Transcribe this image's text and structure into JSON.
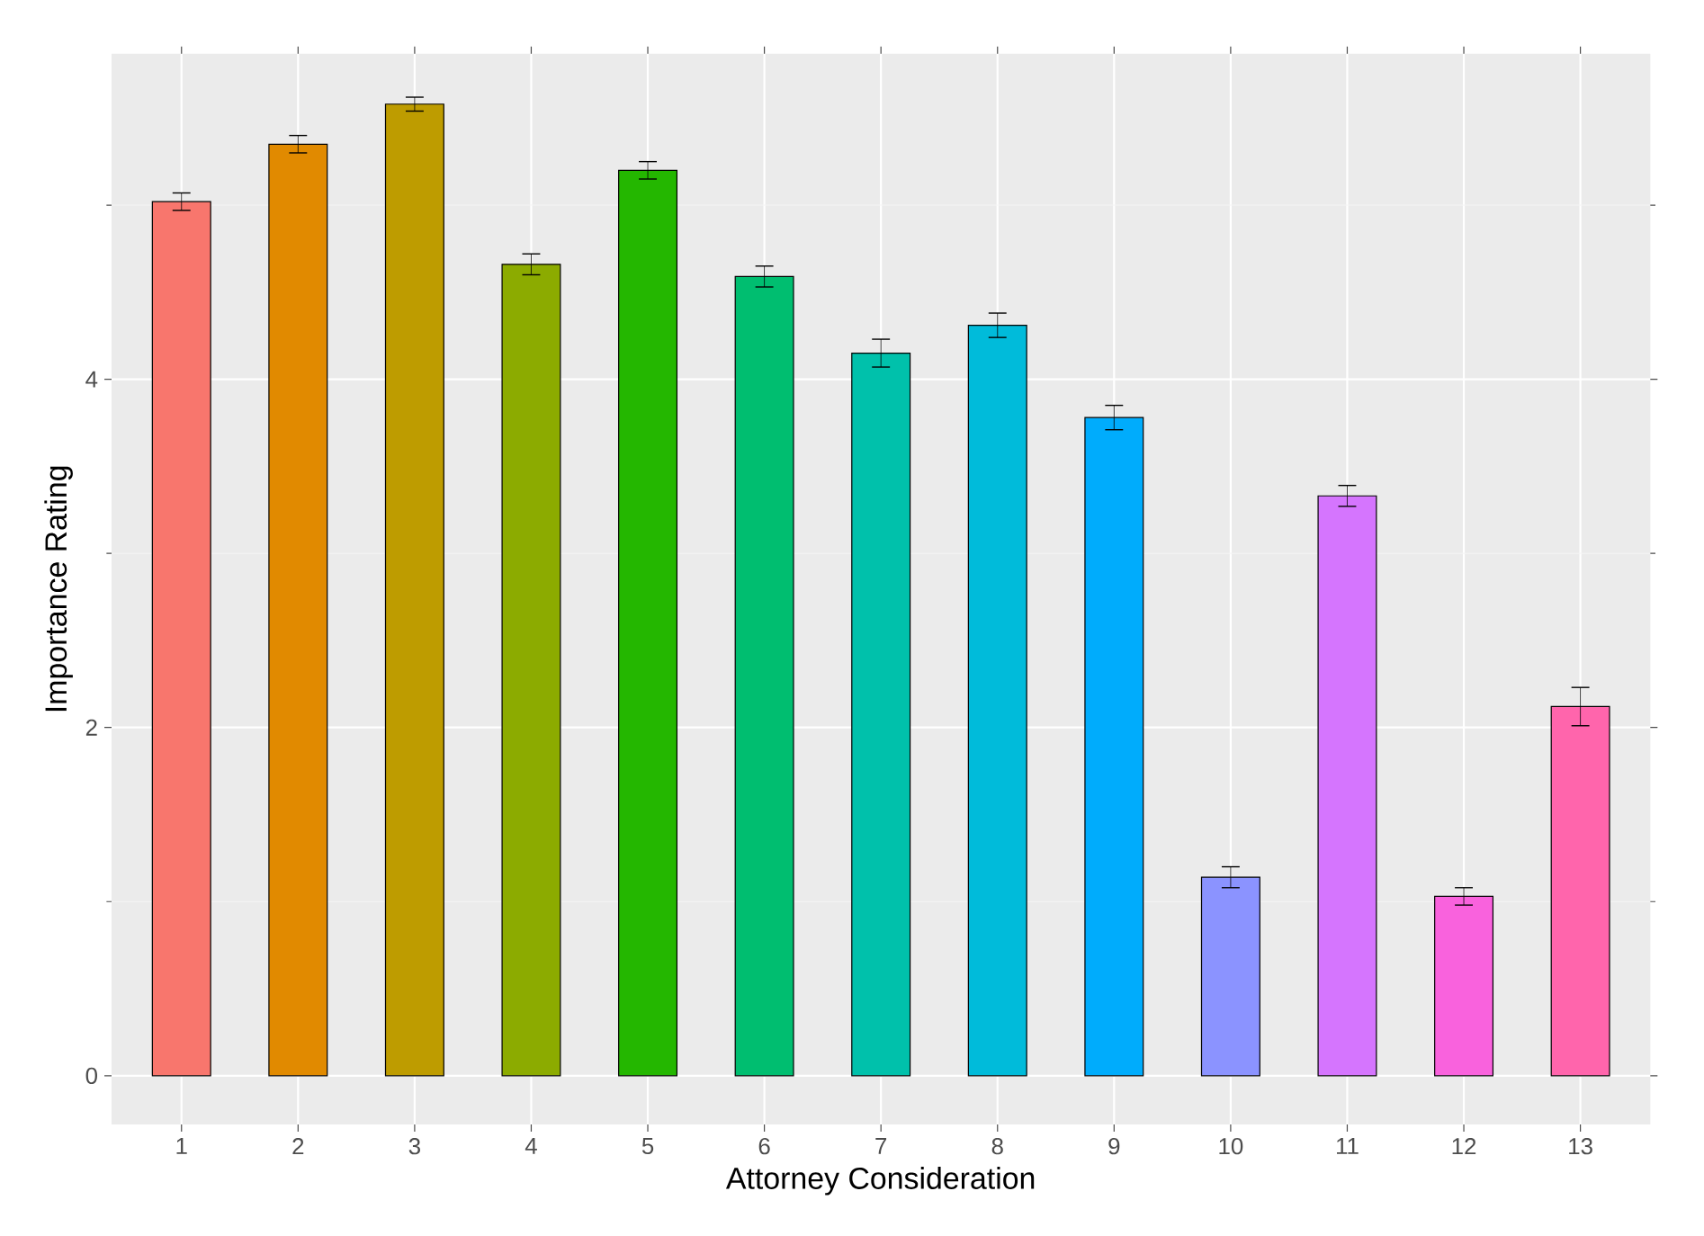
{
  "chart_data": {
    "type": "bar",
    "xlabel": "Attorney Consideration",
    "ylabel": "Importance Rating",
    "categories": [
      "1",
      "2",
      "3",
      "4",
      "5",
      "6",
      "7",
      "8",
      "9",
      "10",
      "11",
      "12",
      "13"
    ],
    "values": [
      5.02,
      5.35,
      5.58,
      4.66,
      5.2,
      4.59,
      4.15,
      4.31,
      3.78,
      1.14,
      3.33,
      1.03,
      2.12
    ],
    "errors": [
      0.05,
      0.05,
      0.04,
      0.06,
      0.05,
      0.06,
      0.08,
      0.07,
      0.07,
      0.06,
      0.06,
      0.05,
      0.11
    ],
    "colors": [
      "#F8766D",
      "#E18A00",
      "#BE9C00",
      "#8CAB00",
      "#24B700",
      "#00BE70",
      "#00C1AB",
      "#00BBDA",
      "#00ACFC",
      "#8B93FF",
      "#D575FE",
      "#F962DD",
      "#FF65AC"
    ],
    "ylim": [
      -0.28,
      5.87
    ],
    "yticks": [
      0,
      2,
      4
    ],
    "grid": true
  }
}
